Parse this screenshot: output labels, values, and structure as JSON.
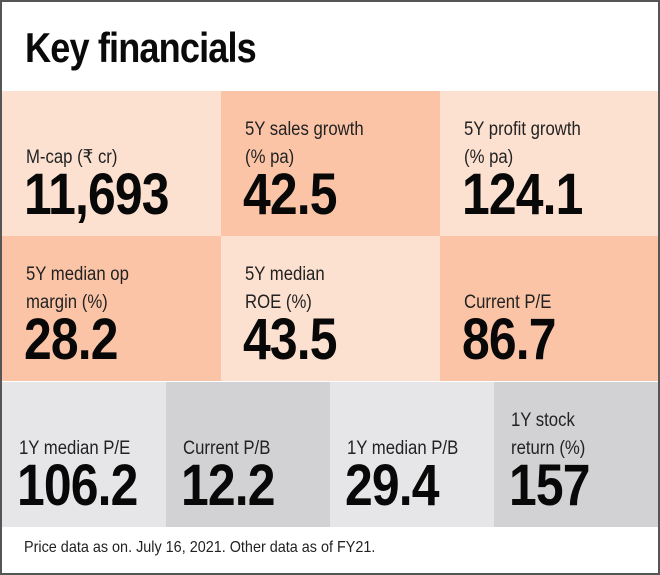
{
  "title": "Key financials",
  "rows": [
    [
      {
        "label": "M-cap (₹ cr)",
        "value": "11,693"
      },
      {
        "label": "5Y sales growth\n(% pa)",
        "value": "42.5"
      },
      {
        "label": "5Y profit growth\n(% pa)",
        "value": "124.1"
      }
    ],
    [
      {
        "label": "5Y median op\nmargin (%)",
        "value": "28.2"
      },
      {
        "label": "5Y median\nROE (%)",
        "value": "43.5"
      },
      {
        "label": "Current P/E",
        "value": "86.7"
      }
    ],
    [
      {
        "label": "1Y median P/E",
        "value": "106.2"
      },
      {
        "label": "Current P/B",
        "value": "12.2"
      },
      {
        "label": "1Y median P/B",
        "value": "29.4"
      },
      {
        "label": "1Y stock\nreturn (%)",
        "value": "157"
      }
    ]
  ],
  "footer": "Price data as on. July 16, 2021. Other data as of FY21.",
  "colors": {
    "peach_light": "#fce0d0",
    "peach_dark": "#fbc4a6",
    "gray_light": "#e6e6e8",
    "gray_dark": "#d2d2d4"
  }
}
